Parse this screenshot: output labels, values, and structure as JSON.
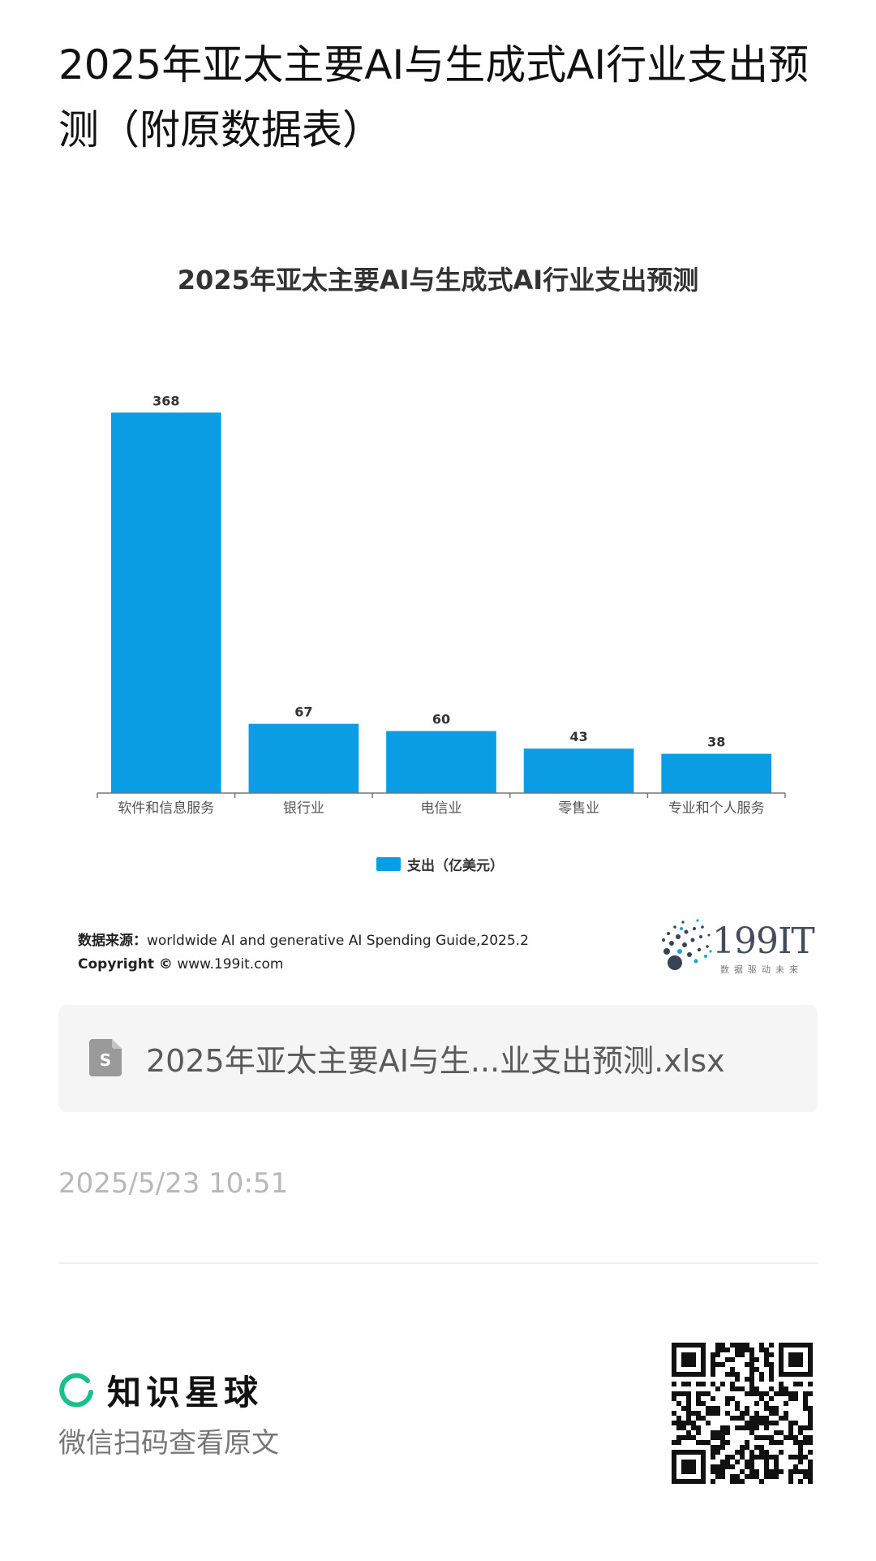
{
  "post": {
    "title": "2025年亚太主要AI与生成式AI行业支出预测（附原数据表）"
  },
  "chart_data": {
    "type": "bar",
    "title": "2025年亚太主要AI与生成式AI行业支出预测",
    "categories": [
      "软件和信息服务",
      "银行业",
      "电信业",
      "零售业",
      "专业和个人服务"
    ],
    "series": [
      {
        "name": "支出（亿美元）",
        "values": [
          368,
          67,
          60,
          43,
          38
        ],
        "color": "#0a9de4"
      }
    ],
    "ylim": [
      0,
      380
    ],
    "grid": false,
    "legend_position": "bottom",
    "data_labels": true
  },
  "source": {
    "label": "数据来源：",
    "text": "worldwide AI and generative AI Spending Guide,2025.2",
    "copyright_label": "Copyright ©",
    "copyright_text": " www.199it.com"
  },
  "brand": {
    "name": "199IT",
    "slogan": "数据驱动未来"
  },
  "attachment": {
    "icon": "spreadsheet-file-icon",
    "file_name": "2025年亚太主要AI与生...业支出预测.xlsx"
  },
  "timestamp": "2025/5/23 10:51",
  "footer": {
    "app_name": "知识星球",
    "scan_hint": "微信扫码查看原文",
    "accent_color": "#1bbf8c"
  }
}
